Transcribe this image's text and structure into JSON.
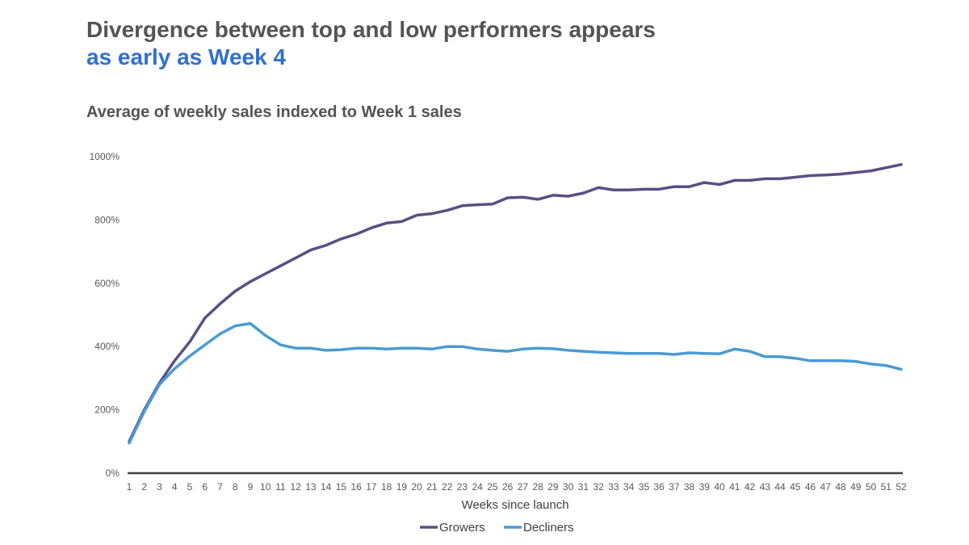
{
  "headline": {
    "line1": "Divergence between top and low performers appears",
    "line2": "as early as Week 4"
  },
  "colors": {
    "headline_text": "#545454",
    "headline_accent": "#2f6fd1",
    "growers": "#5b4e86",
    "decliners": "#4a9bd3",
    "axis": "#404040"
  },
  "chart_data": {
    "type": "line",
    "title": "Average of weekly sales indexed to Week 1 sales",
    "xlabel": "Weeks since launch",
    "ylabel": "",
    "ylim": [
      0,
      1000
    ],
    "yticks": [
      0,
      200,
      400,
      600,
      800,
      1000
    ],
    "ytick_labels": [
      "0%",
      "200%",
      "400%",
      "600%",
      "800%",
      "1000%"
    ],
    "grid": false,
    "legend_position": "bottom",
    "x": [
      1,
      2,
      3,
      4,
      5,
      6,
      7,
      8,
      9,
      10,
      11,
      12,
      13,
      14,
      15,
      16,
      17,
      18,
      19,
      20,
      21,
      22,
      23,
      24,
      25,
      26,
      27,
      28,
      29,
      30,
      31,
      32,
      33,
      34,
      35,
      36,
      37,
      38,
      39,
      40,
      41,
      42,
      43,
      44,
      45,
      46,
      47,
      48,
      49,
      50,
      51,
      52
    ],
    "series": [
      {
        "name": "Growers",
        "values": [
          100,
          200,
          285,
          355,
          415,
          490,
          535,
          575,
          605,
          630,
          655,
          680,
          705,
          720,
          740,
          755,
          775,
          790,
          795,
          815,
          820,
          830,
          845,
          848,
          850,
          870,
          872,
          865,
          878,
          875,
          885,
          902,
          895,
          895,
          897,
          897,
          905,
          905,
          918,
          912,
          925,
          925,
          930,
          930,
          935,
          940,
          942,
          945,
          950,
          955,
          965,
          975
        ]
      },
      {
        "name": "Decliners",
        "values": [
          95,
          195,
          280,
          330,
          370,
          405,
          440,
          465,
          473,
          435,
          405,
          395,
          395,
          388,
          390,
          395,
          395,
          392,
          395,
          395,
          392,
          400,
          400,
          392,
          388,
          385,
          392,
          395,
          393,
          388,
          385,
          382,
          380,
          378,
          378,
          378,
          375,
          380,
          378,
          377,
          392,
          385,
          368,
          368,
          363,
          355,
          355,
          355,
          353,
          345,
          340,
          328
        ]
      }
    ]
  }
}
